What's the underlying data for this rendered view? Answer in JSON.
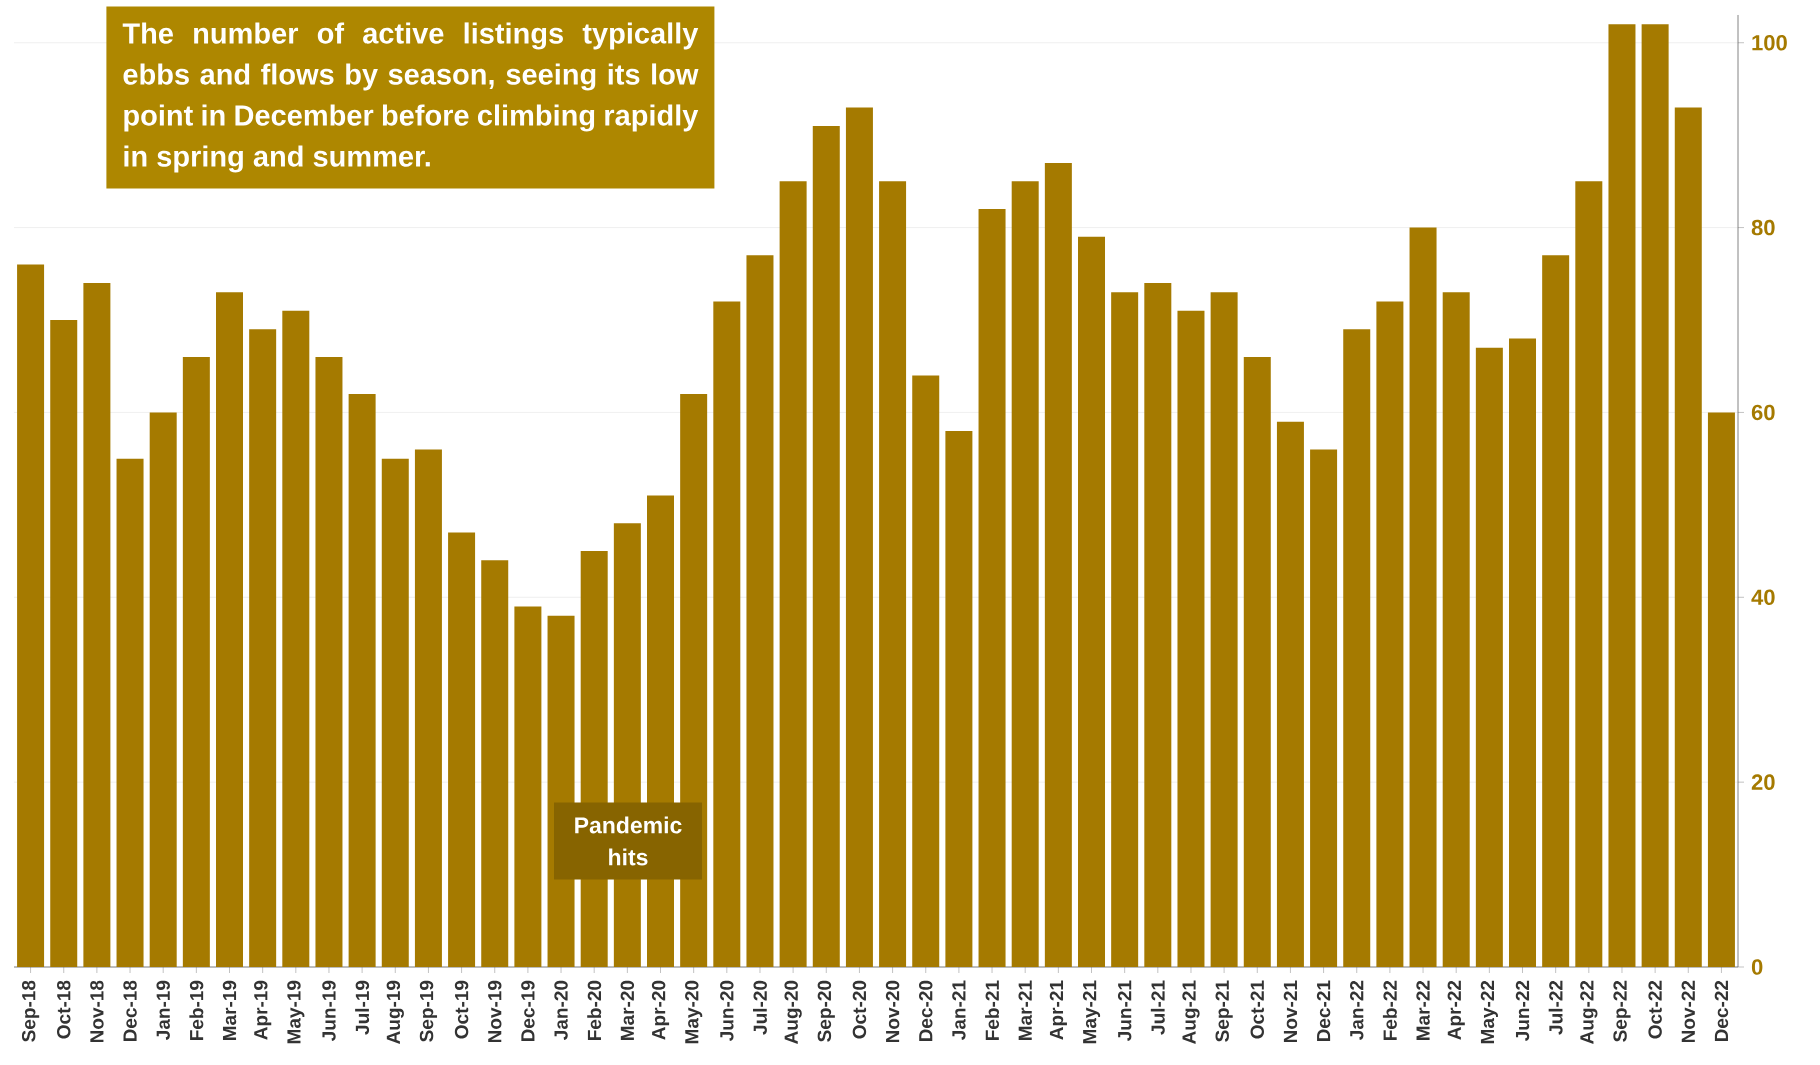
{
  "chart_data": {
    "type": "bar",
    "categories": [
      "Sep-18",
      "Oct-18",
      "Nov-18",
      "Dec-18",
      "Jan-19",
      "Feb-19",
      "Mar-19",
      "Apr-19",
      "May-19",
      "Jun-19",
      "Jul-19",
      "Aug-19",
      "Sep-19",
      "Oct-19",
      "Nov-19",
      "Dec-19",
      "Jan-20",
      "Feb-20",
      "Mar-20",
      "Apr-20",
      "May-20",
      "Jun-20",
      "Jul-20",
      "Aug-20",
      "Sep-20",
      "Oct-20",
      "Nov-20",
      "Dec-20",
      "Jan-21",
      "Feb-21",
      "Mar-21",
      "Apr-21",
      "May-21",
      "Jun-21",
      "Jul-21",
      "Aug-21",
      "Sep-21",
      "Oct-21",
      "Nov-21",
      "Dec-21",
      "Jan-22",
      "Feb-22",
      "Mar-22",
      "Apr-22",
      "May-22",
      "Jun-22",
      "Jul-22",
      "Aug-22",
      "Sep-22",
      "Oct-22",
      "Nov-22",
      "Dec-22"
    ],
    "values": [
      76,
      70,
      74,
      55,
      60,
      66,
      73,
      69,
      71,
      66,
      62,
      55,
      56,
      47,
      44,
      39,
      38,
      45,
      48,
      51,
      62,
      72,
      77,
      85,
      91,
      93,
      85,
      64,
      58,
      82,
      85,
      87,
      79,
      73,
      74,
      71,
      73,
      66,
      59,
      56,
      69,
      72,
      80,
      73,
      67,
      68,
      77,
      85,
      102,
      102,
      93,
      60
    ],
    "color": "#a57a00",
    "ylim": [
      0,
      103
    ],
    "yticks": [
      0,
      20,
      40,
      60,
      80,
      100
    ],
    "grid": "y",
    "annotations": [
      "The number of active listings typically ebbs and flows by season, seeing its low point in December before climbing rapidly in spring and summer.",
      "Pandemic hits"
    ]
  }
}
